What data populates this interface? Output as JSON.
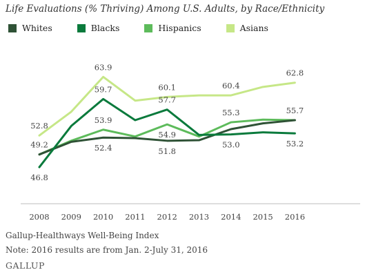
{
  "title": "Life Evaluations (% Thriving) Among U.S. Adults, by Race/Ethnicity",
  "source": "Gallup-Healthways Well-Being Index",
  "note": "Note: 2016 results are from Jan. 2-July 31, 2016",
  "brand": "GALLUP",
  "chart_data": {
    "type": "line",
    "title": "Life Evaluations (% Thriving) Among U.S. Adults, by Race/Ethnicity",
    "xlabel": "",
    "ylabel": "",
    "x": [
      "2008",
      "2009",
      "2010",
      "2011",
      "2012",
      "2013",
      "2014",
      "2015",
      "2016"
    ],
    "ylim": [
      40,
      68
    ],
    "grid": false,
    "legend": "top",
    "series": [
      {
        "name": "Whites",
        "color": "#2f5236",
        "values": [
          49.2,
          51.6,
          52.4,
          52.3,
          51.8,
          51.9,
          54.0,
          55.1,
          55.7
        ]
      },
      {
        "name": "Blacks",
        "color": "#0a7a3c",
        "values": [
          46.8,
          54.6,
          59.7,
          55.7,
          57.7,
          52.9,
          53.0,
          53.4,
          53.2
        ]
      },
      {
        "name": "Hispanics",
        "color": "#5dbb5b",
        "values": [
          49.2,
          51.8,
          53.9,
          52.6,
          54.9,
          52.6,
          55.3,
          55.8,
          55.7
        ]
      },
      {
        "name": "Asians",
        "color": "#c6e787",
        "values": [
          52.8,
          57.3,
          63.9,
          59.4,
          60.1,
          60.4,
          60.4,
          62.0,
          62.8
        ]
      }
    ],
    "labels": [
      {
        "x": "2008",
        "series": "Asians",
        "text": "52.8",
        "pos": "above"
      },
      {
        "x": "2008",
        "series": "Whites",
        "text": "49.2",
        "pos": "above"
      },
      {
        "x": "2008",
        "series": "Blacks",
        "text": "46.8",
        "pos": "below"
      },
      {
        "x": "2010",
        "series": "Asians",
        "text": "63.9",
        "pos": "above"
      },
      {
        "x": "2010",
        "series": "Blacks",
        "text": "59.7",
        "pos": "above"
      },
      {
        "x": "2010",
        "series": "Hispanics",
        "text": "53.9",
        "pos": "above"
      },
      {
        "x": "2010",
        "series": "Whites",
        "text": "52.4",
        "pos": "below"
      },
      {
        "x": "2012",
        "series": "Asians",
        "text": "60.1",
        "pos": "above"
      },
      {
        "x": "2012",
        "series": "Blacks",
        "text": "57.7",
        "pos": "above"
      },
      {
        "x": "2012",
        "series": "Hispanics",
        "text": "54.9",
        "pos": "below"
      },
      {
        "x": "2012",
        "series": "Whites",
        "text": "51.8",
        "pos": "below"
      },
      {
        "x": "2014",
        "series": "Asians",
        "text": "60.4",
        "pos": "above"
      },
      {
        "x": "2014",
        "series": "Hispanics",
        "text": "55.3",
        "pos": "above"
      },
      {
        "x": "2014",
        "series": "Blacks",
        "text": "53.0",
        "pos": "below"
      },
      {
        "x": "2016",
        "series": "Asians",
        "text": "62.8",
        "pos": "above"
      },
      {
        "x": "2016",
        "series": "Whites",
        "text": "55.7",
        "pos": "above"
      },
      {
        "x": "2016",
        "series": "Blacks",
        "text": "53.2",
        "pos": "below"
      }
    ]
  }
}
